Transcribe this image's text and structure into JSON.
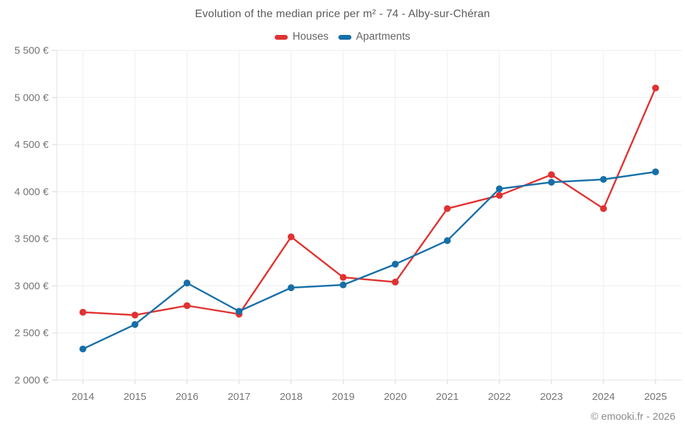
{
  "header": {
    "title": "Evolution of the median price per m² - 74 - Alby-sur-Chéran"
  },
  "footer": {
    "credit": "© emooki.fr - 2026"
  },
  "colors": {
    "houses": "#e03231",
    "apartments": "#176fa8",
    "grid": "#ececec",
    "axis": "#e0e0e0",
    "tick": "#d6d6d6",
    "label": "#757575",
    "title": "#595959"
  },
  "chart_data": {
    "type": "line",
    "title": "Evolution of the median price per m² - 74 - Alby-sur-Chéran",
    "categories": [
      "2014",
      "2015",
      "2016",
      "2017",
      "2018",
      "2019",
      "2020",
      "2021",
      "2022",
      "2023",
      "2024",
      "2025"
    ],
    "series": [
      {
        "name": "Houses",
        "color": "#e03231",
        "values": [
          2720,
          2690,
          2790,
          2700,
          3520,
          3090,
          3040,
          3820,
          3960,
          4180,
          3820,
          5100
        ]
      },
      {
        "name": "Apartments",
        "color": "#176fa8",
        "values": [
          2330,
          2590,
          3030,
          2730,
          2980,
          3010,
          3230,
          3480,
          4030,
          4100,
          4130,
          4210
        ]
      }
    ],
    "ylim": [
      2000,
      5500
    ],
    "yticks": [
      {
        "value": 2000,
        "label": "2 000 €"
      },
      {
        "value": 2500,
        "label": "2 500 €"
      },
      {
        "value": 3000,
        "label": "3 000 €"
      },
      {
        "value": 3500,
        "label": "3 500 €"
      },
      {
        "value": 4000,
        "label": "4 000 €"
      },
      {
        "value": 4500,
        "label": "4 500 €"
      },
      {
        "value": 5000,
        "label": "5 000 €"
      },
      {
        "value": 5500,
        "label": "5 500 €"
      }
    ],
    "xlabel": "",
    "ylabel": "",
    "grid": true,
    "legend_position": "top"
  }
}
